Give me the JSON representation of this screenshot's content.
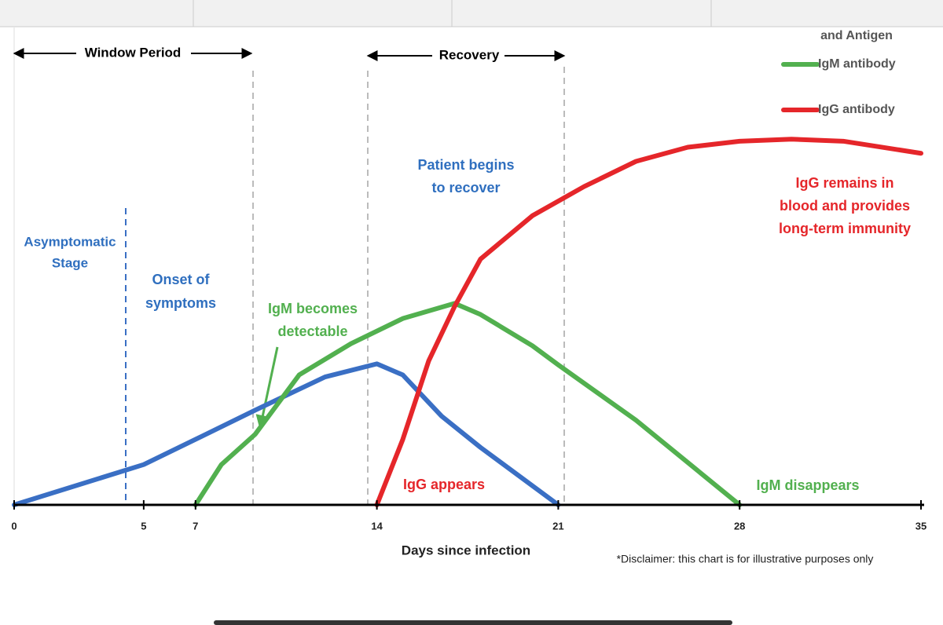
{
  "chart_data": {
    "type": "line",
    "x_label": "Days since infection",
    "note": "*Disclaimer: this chart is for illustrative purposes only",
    "xlim": [
      0,
      35
    ],
    "xticks": [
      0,
      5,
      7,
      14,
      21,
      28,
      35
    ],
    "ylim": [
      0,
      5
    ],
    "series": [
      {
        "name": "and Antigen",
        "color": "#3a6fc4",
        "x": [
          0,
          5,
          7,
          9.3,
          12,
          14,
          15,
          16.5,
          18,
          21
        ],
        "values": [
          0,
          0.4,
          0.65,
          0.94,
          1.27,
          1.4,
          1.29,
          0.88,
          0.57,
          0
        ]
      },
      {
        "name": "IgM antibody",
        "color": "#52b04f",
        "x": [
          7,
          8,
          9.3,
          11,
          13,
          15,
          17,
          18,
          20,
          21,
          24,
          28
        ],
        "values": [
          0,
          0.4,
          0.7,
          1.29,
          1.6,
          1.85,
          2.0,
          1.89,
          1.58,
          1.39,
          0.84,
          0
        ]
      },
      {
        "name": "IgG antibody",
        "color": "#e5262a",
        "x": [
          14,
          15,
          16,
          17,
          18,
          20,
          22,
          24,
          26,
          28,
          30,
          32,
          35
        ],
        "values": [
          0,
          0.65,
          1.43,
          1.97,
          2.44,
          2.87,
          3.16,
          3.41,
          3.55,
          3.61,
          3.63,
          3.61,
          3.49
        ]
      }
    ],
    "annotations": [
      "Window Period",
      "Recovery",
      "Patient begins",
      "to recover",
      "IgG remains in",
      "blood and provides",
      "long-term immunity",
      "Asymptomatic",
      "Stage",
      "Onset of",
      "symptoms",
      "IgM becomes",
      "detectable",
      "IgG appears",
      "IgM disappears"
    ]
  }
}
